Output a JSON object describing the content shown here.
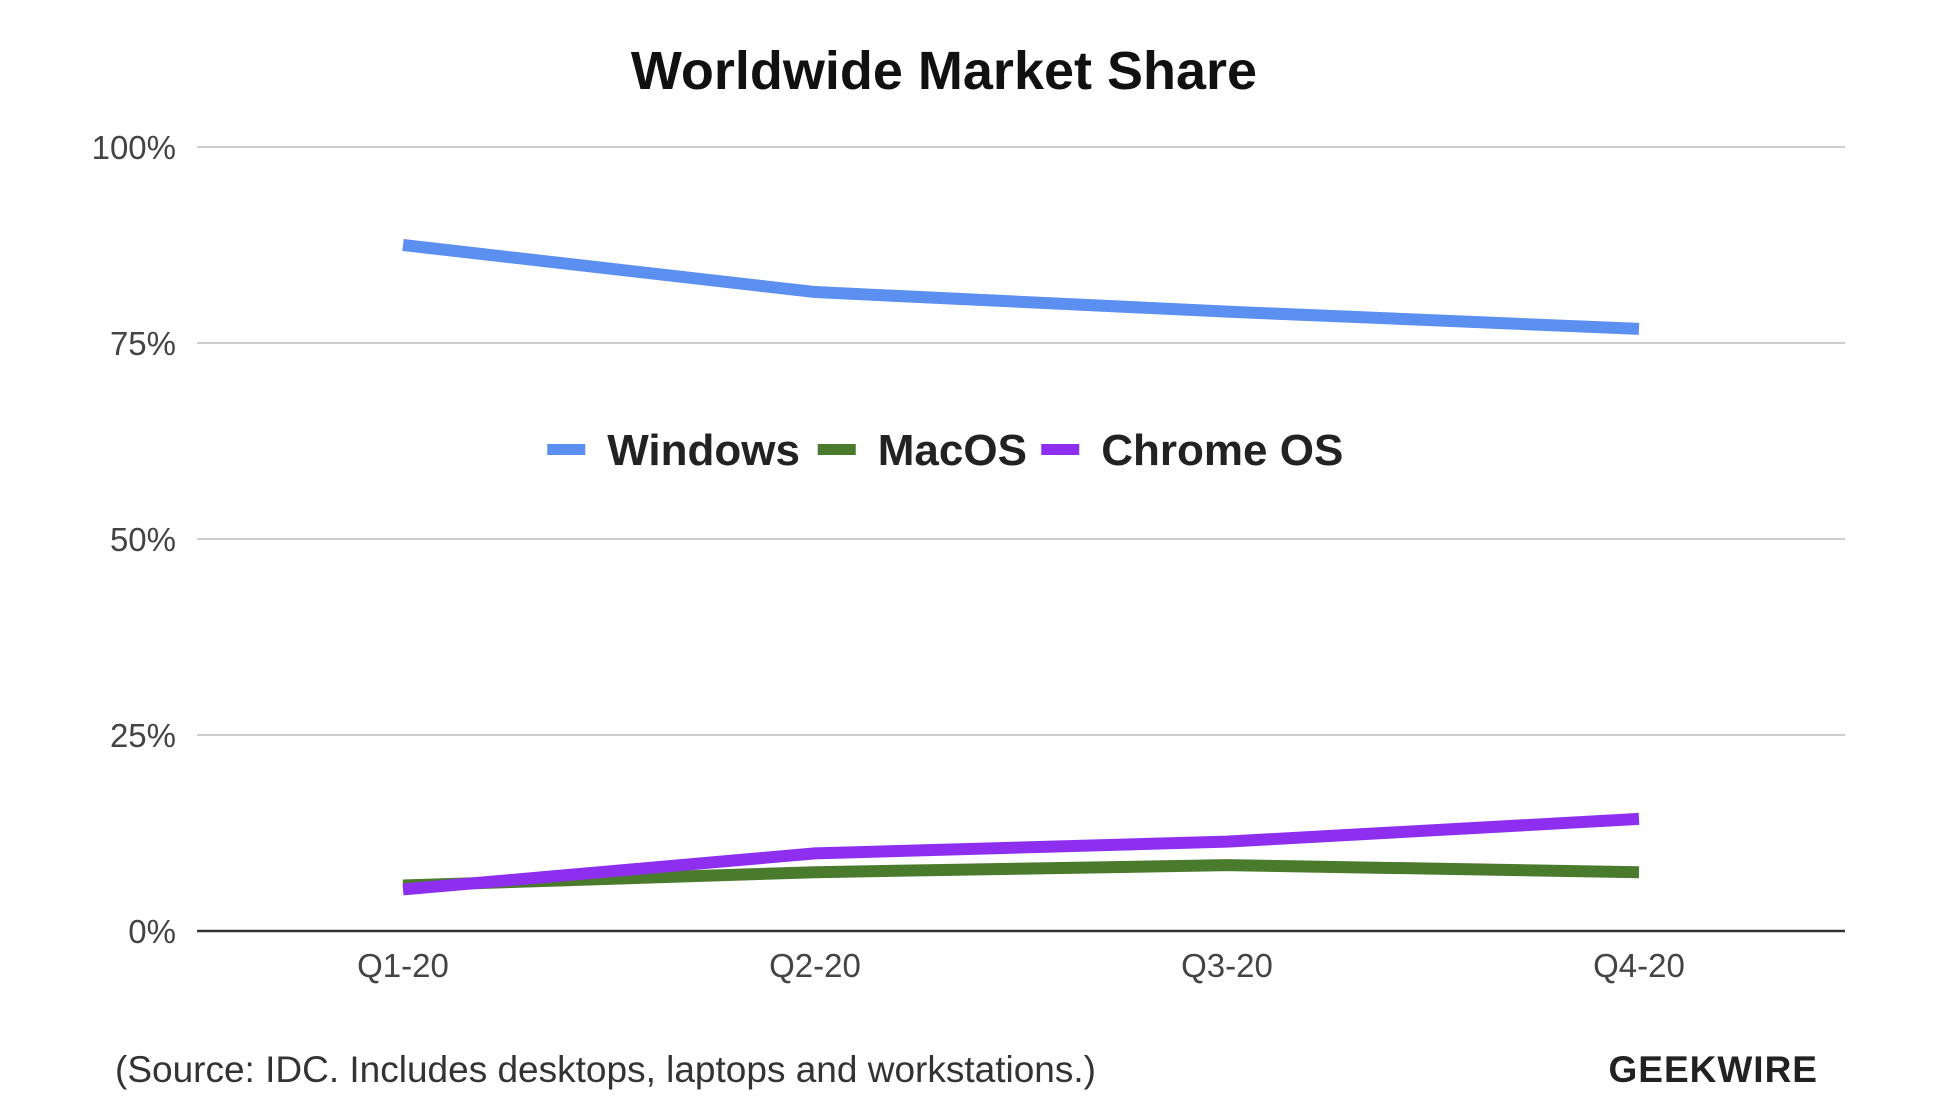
{
  "chart_data": {
    "type": "line",
    "title": "Worldwide Market Share",
    "categories": [
      "Q1-20",
      "Q2-20",
      "Q3-20",
      "Q4-20"
    ],
    "y_ticks": [
      "0%",
      "25%",
      "50%",
      "75%",
      "100%"
    ],
    "ylim": [
      0,
      100
    ],
    "grid": true,
    "legend_position": "top-center, inside plot",
    "series": [
      {
        "name": "Windows",
        "color": "#5b8ff0",
        "values": [
          87.5,
          81.5,
          79,
          76.8
        ]
      },
      {
        "name": "MacOS",
        "color": "#4a7a2c",
        "values": [
          5.8,
          7.5,
          8.4,
          7.5
        ]
      },
      {
        "name": "Chrome OS",
        "color": "#8e2ff0",
        "values": [
          5.3,
          9.9,
          11.4,
          14.3
        ]
      }
    ]
  },
  "footer": {
    "source_note": "(Source: IDC. Includes desktops, laptops and workstations.)",
    "brand": "GEEKWIRE"
  }
}
